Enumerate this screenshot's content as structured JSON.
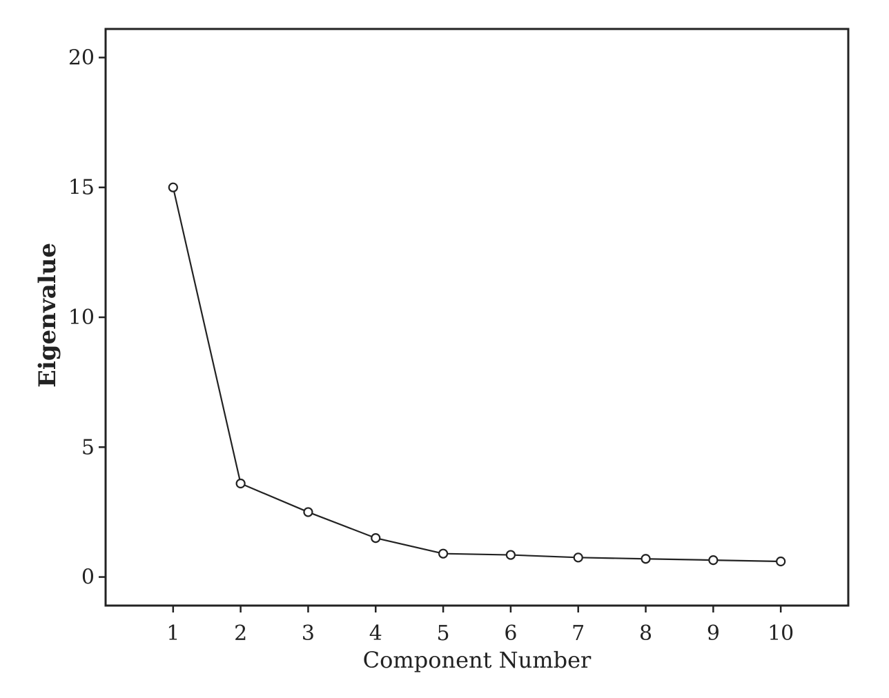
{
  "chart_data": {
    "type": "line",
    "title": "",
    "xlabel": "Component Number",
    "ylabel": "Eigenvalue",
    "x": [
      1,
      2,
      3,
      4,
      5,
      6,
      7,
      8,
      9,
      10
    ],
    "series": [
      {
        "values": [
          15.0,
          3.6,
          2.5,
          1.5,
          0.9,
          0.85,
          0.75,
          0.7,
          0.65,
          0.6
        ]
      }
    ],
    "xlim": [
      0,
      11
    ],
    "ylim": [
      -1.1,
      21.1
    ],
    "x_ticks": [
      "1",
      "2",
      "3",
      "4",
      "5",
      "6",
      "7",
      "8",
      "9",
      "10"
    ],
    "y_ticks": [
      "0",
      "5",
      "10",
      "15",
      "20"
    ],
    "y_tick_values": [
      0,
      5,
      10,
      15,
      20
    ],
    "grid": false,
    "legend": "none",
    "marker": "open-circle",
    "line_color": "#222222"
  }
}
